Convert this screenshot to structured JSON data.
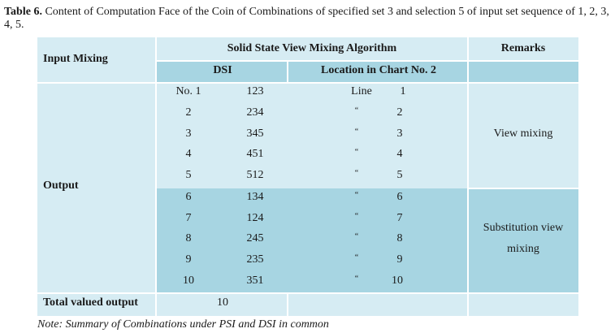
{
  "caption": {
    "label": "Table 6.",
    "text": "Content of Computation Face of the Coin of Combinations of specified set 3 and selection 5 of input set sequence of 1, 2, 3, 4, 5."
  },
  "headers": {
    "input_mixing": "Input Mixing",
    "algorithm": "Solid State View Mixing Algorithm",
    "remarks": "Remarks",
    "dsi": "DSI",
    "location": "Location in Chart No. 2"
  },
  "row_label": "Output",
  "rows": [
    {
      "no": "No. 1",
      "dsi": "123",
      "loc": "Line",
      "line": "1"
    },
    {
      "no": "2",
      "dsi": "234",
      "loc": "“",
      "line": "2"
    },
    {
      "no": "3",
      "dsi": "345",
      "loc": "“",
      "line": "3"
    },
    {
      "no": "4",
      "dsi": "451",
      "loc": "“",
      "line": "4"
    },
    {
      "no": "5",
      "dsi": "512",
      "loc": "“",
      "line": "5"
    },
    {
      "no": "6",
      "dsi": "134",
      "loc": "“",
      "line": "6"
    },
    {
      "no": "7",
      "dsi": "124",
      "loc": "“",
      "line": "7"
    },
    {
      "no": "8",
      "dsi": "245",
      "loc": "“",
      "line": "8"
    },
    {
      "no": "9",
      "dsi": "235",
      "loc": "“",
      "line": "9"
    },
    {
      "no": "10",
      "dsi": "351",
      "loc": "“",
      "line": "10"
    }
  ],
  "remarks": {
    "view": "View mixing",
    "substitution_1": "Substitution view",
    "substitution_2": "mixing"
  },
  "total": {
    "label": "Total valued output",
    "value": "10"
  },
  "note": "Note: Summary of Combinations under PSI and DSI in common",
  "colors": {
    "light_cell": "#d6ecf3",
    "dark_cell": "#a7d5e2"
  }
}
